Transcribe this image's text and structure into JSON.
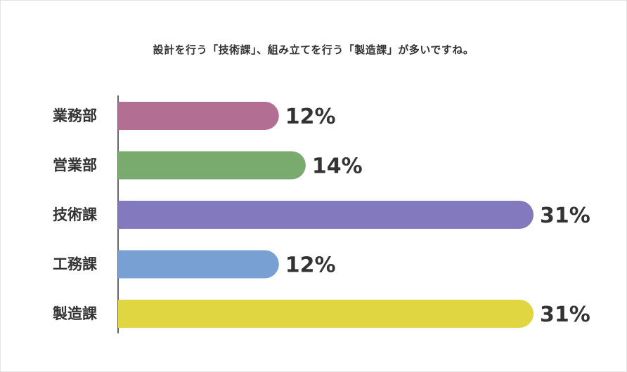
{
  "chart_data": {
    "type": "bar",
    "orientation": "horizontal",
    "title": "設計を行う「技術課」、組み立てを行う「製造課」が多いですね。",
    "categories": [
      "業務部",
      "営業部",
      "技術課",
      "工務課",
      "製造課"
    ],
    "values": [
      12,
      14,
      31,
      12,
      31
    ],
    "value_labels": [
      "12%",
      "14%",
      "31%",
      "12%",
      "31%"
    ],
    "colors": [
      "#b36f93",
      "#79ab6e",
      "#8279be",
      "#79a0d3",
      "#dfd641"
    ],
    "xlim": [
      0,
      31
    ],
    "grid": false,
    "legend": "none"
  }
}
